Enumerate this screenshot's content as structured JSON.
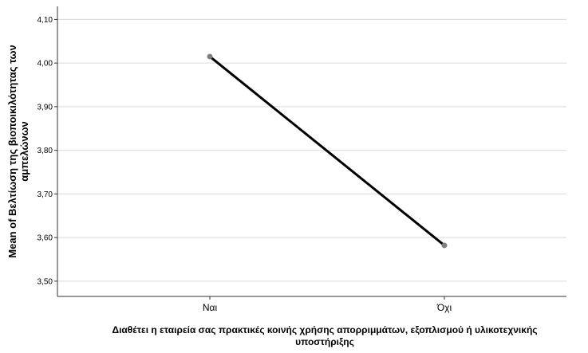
{
  "chart_data": {
    "type": "line",
    "categories": [
      "Ναι",
      "Όχι"
    ],
    "series": [
      {
        "values": [
          4.015,
          3.582
        ]
      }
    ],
    "ylabel_line1": "Mean of Βελτίωση της βιοποικιλότητας των",
    "ylabel_line2": "αμπελώνων",
    "xlabel_line1": "Διαθέτει η εταιρεία σας πρακτικές κοινής χρήσης απορριμμάτων, εξοπλισμού ή υλικοτεχνικής",
    "xlabel_line2": "υποστήριξης",
    "ylim": [
      3.465,
      4.13
    ],
    "yticks": [
      "3,50",
      "3,60",
      "3,70",
      "3,80",
      "3,90",
      "4,00",
      "4,10"
    ],
    "grid": "horizontal",
    "colors": {
      "line": "#000000",
      "marker": "#7f7f7f",
      "grid": "#d9d9d9",
      "axis": "#333333"
    }
  }
}
